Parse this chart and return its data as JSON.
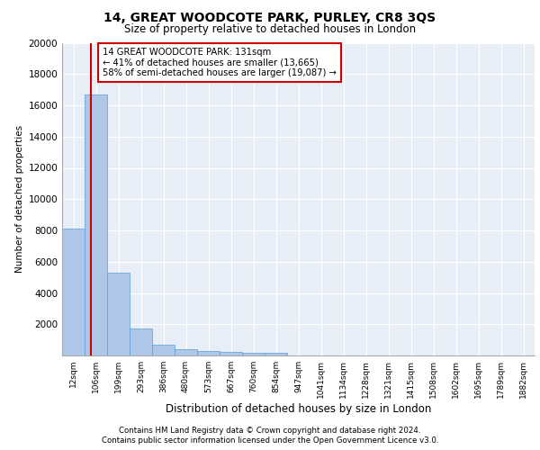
{
  "title": "14, GREAT WOODCOTE PARK, PURLEY, CR8 3QS",
  "subtitle": "Size of property relative to detached houses in London",
  "xlabel": "Distribution of detached houses by size in London",
  "ylabel": "Number of detached properties",
  "categories": [
    "12sqm",
    "106sqm",
    "199sqm",
    "293sqm",
    "386sqm",
    "480sqm",
    "573sqm",
    "667sqm",
    "760sqm",
    "854sqm",
    "947sqm",
    "1041sqm",
    "1134sqm",
    "1228sqm",
    "1321sqm",
    "1415sqm",
    "1508sqm",
    "1602sqm",
    "1695sqm",
    "1789sqm",
    "1882sqm"
  ],
  "bar_heights": [
    8100,
    16700,
    5300,
    1750,
    700,
    380,
    290,
    240,
    200,
    200,
    0,
    0,
    0,
    0,
    0,
    0,
    0,
    0,
    0,
    0,
    0
  ],
  "bar_color": "#aec6e8",
  "bar_edge_color": "#5a9fd4",
  "vline_color": "#cc0000",
  "annotation_text": "14 GREAT WOODCOTE PARK: 131sqm\n← 41% of detached houses are smaller (13,665)\n58% of semi-detached houses are larger (19,087) →",
  "annotation_box_color": "#cc0000",
  "ylim": [
    0,
    20000
  ],
  "yticks": [
    0,
    2000,
    4000,
    6000,
    8000,
    10000,
    12000,
    14000,
    16000,
    18000,
    20000
  ],
  "bg_color": "#e8eef7",
  "footer_line1": "Contains HM Land Registry data © Crown copyright and database right 2024.",
  "footer_line2": "Contains public sector information licensed under the Open Government Licence v3.0."
}
